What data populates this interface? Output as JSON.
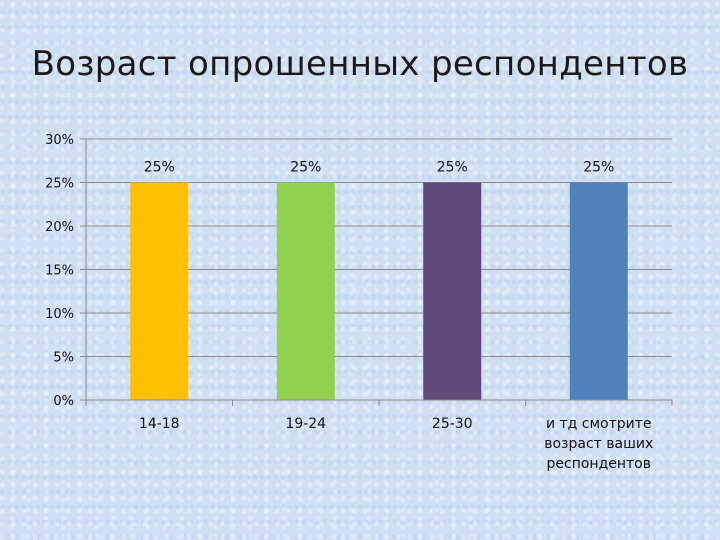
{
  "chart_data": {
    "type": "bar",
    "title": "Возраст опрошенных респондентов",
    "categories": [
      [
        "14-18"
      ],
      [
        "19-24"
      ],
      [
        "25-30"
      ],
      [
        "и тд смотрите",
        "возраст ваших",
        "респондентов"
      ]
    ],
    "values": [
      25,
      25,
      25,
      25
    ],
    "data_labels": [
      "25%",
      "25%",
      "25%",
      "25%"
    ],
    "bar_colors": [
      "#ffc000",
      "#92d050",
      "#60497a",
      "#4f81bd"
    ],
    "ylim": [
      0,
      30
    ],
    "yticks": [
      0,
      5,
      10,
      15,
      20,
      25,
      30
    ],
    "ytick_labels": [
      "0%",
      "5%",
      "10%",
      "15%",
      "20%",
      "25%",
      "30%"
    ],
    "grid": true,
    "xlabel": "",
    "ylabel": ""
  }
}
